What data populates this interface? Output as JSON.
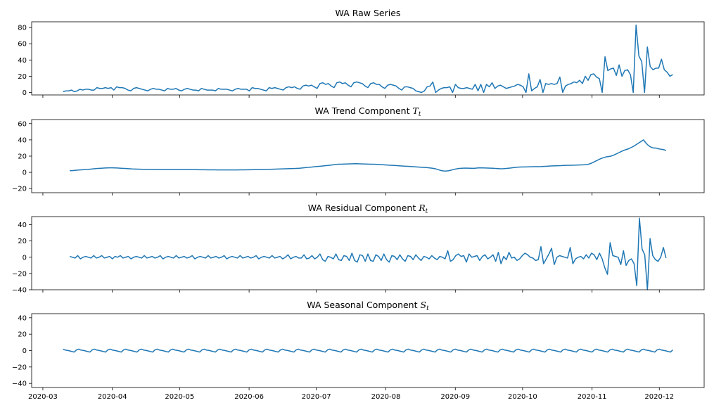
{
  "colors": {
    "line": "#1f77b4",
    "axis": "#000000",
    "background": "#ffffff"
  },
  "x_tick_labels": [
    "2020-03",
    "2020-04",
    "2020-05",
    "2020-06",
    "2020-07",
    "2020-08",
    "2020-09",
    "2020-10",
    "2020-11",
    "2020-12"
  ],
  "chart_data": [
    {
      "type": "line",
      "title": "WA Raw Series",
      "ylim": [
        -3,
        87
      ],
      "yticks": [
        0,
        20,
        40,
        60,
        80
      ],
      "series": [
        {
          "x_start": "2020-03-10",
          "x_end": "2020-12-07",
          "values": [
            1,
            2,
            2,
            3,
            1,
            2,
            4,
            3,
            4,
            4,
            3,
            3,
            6,
            5,
            5,
            6,
            5,
            6,
            3,
            7,
            6,
            6,
            5,
            3,
            2,
            5,
            6,
            5,
            4,
            3,
            2,
            4,
            5,
            4,
            4,
            3,
            2,
            5,
            4,
            4,
            5,
            3,
            2,
            4,
            5,
            4,
            3,
            3,
            2,
            5,
            4,
            3,
            3,
            3,
            2,
            5,
            4,
            4,
            4,
            3,
            2,
            4,
            5,
            4,
            4,
            4,
            2,
            6,
            5,
            5,
            4,
            3,
            2,
            6,
            5,
            6,
            5,
            4,
            3,
            6,
            7,
            6,
            7,
            5,
            4,
            8,
            9,
            8,
            9,
            7,
            5,
            11,
            12,
            10,
            11,
            8,
            6,
            12,
            13,
            11,
            12,
            9,
            7,
            12,
            13,
            12,
            11,
            8,
            6,
            11,
            12,
            10,
            10,
            7,
            5,
            9,
            10,
            9,
            8,
            5,
            3,
            7,
            7,
            6,
            5,
            2,
            1,
            0,
            2,
            7,
            8,
            13,
            0,
            3,
            5,
            6,
            6,
            7,
            0,
            10,
            6,
            5,
            5,
            6,
            5,
            4,
            10,
            2,
            10,
            0,
            10,
            7,
            12,
            5,
            8,
            9,
            7,
            5,
            6,
            7,
            8,
            10,
            9,
            7,
            0,
            23,
            2,
            5,
            7,
            16,
            0,
            11,
            10,
            11,
            10,
            11,
            19,
            0,
            8,
            10,
            11,
            13,
            12,
            15,
            11,
            20,
            15,
            22,
            23,
            19,
            17,
            0,
            44,
            27,
            29,
            30,
            21,
            34,
            20,
            27,
            28,
            22,
            0,
            83,
            45,
            38,
            0,
            56,
            32,
            28,
            30,
            30,
            41,
            28,
            25,
            20,
            22
          ]
        }
      ]
    },
    {
      "type": "line",
      "title": "WA Trend Component",
      "title_symbol": "T",
      "title_subscript": "t",
      "ylim": [
        -25,
        65
      ],
      "yticks": [
        -20,
        0,
        20,
        40,
        60
      ],
      "series": [
        {
          "x_start": "2020-03-13",
          "x_end": "2020-12-04",
          "values": [
            2,
            2.2,
            2.5,
            2.8,
            3,
            3.2,
            3.4,
            3.6,
            3.9,
            4.2,
            4.5,
            4.8,
            5,
            5.2,
            5.4,
            5.5,
            5.6,
            5.6,
            5.5,
            5.4,
            5.2,
            5,
            4.8,
            4.6,
            4.4,
            4.2,
            4.1,
            4,
            3.9,
            3.8,
            3.8,
            3.7,
            3.7,
            3.7,
            3.6,
            3.6,
            3.5,
            3.5,
            3.4,
            3.4,
            3.4,
            3.4,
            3.5,
            3.5,
            3.5,
            3.5,
            3.5,
            3.4,
            3.4,
            3.4,
            3.3,
            3.3,
            3.2,
            3.2,
            3.2,
            3.1,
            3.1,
            3.1,
            3.1,
            3,
            3,
            3,
            3,
            3,
            3,
            3,
            3,
            3,
            3.1,
            3.1,
            3.1,
            3.2,
            3.2,
            3.3,
            3.3,
            3.4,
            3.4,
            3.5,
            3.6,
            3.7,
            3.8,
            3.9,
            4,
            4.1,
            4.2,
            4.3,
            4.4,
            4.5,
            4.6,
            4.7,
            4.8,
            5,
            5.2,
            5.5,
            5.8,
            6.1,
            6.4,
            6.7,
            7,
            7.3,
            7.6,
            7.9,
            8.2,
            8.5,
            8.9,
            9.3,
            9.7,
            10,
            10.1,
            10.2,
            10.3,
            10.4,
            10.5,
            10.6,
            10.7,
            10.6,
            10.5,
            10.4,
            10.3,
            10.2,
            10.1,
            10,
            9.9,
            9.8,
            9.6,
            9.4,
            9.2,
            9,
            8.8,
            8.6,
            8.4,
            8.2,
            8,
            7.8,
            7.6,
            7.4,
            7.2,
            7,
            6.8,
            6.6,
            6.4,
            6.2,
            6,
            5.7,
            5.4,
            5,
            4.4,
            3.4,
            2.4,
            1.8,
            1.6,
            1.9,
            2.6,
            3.4,
            4.1,
            4.7,
            5,
            5.2,
            5.3,
            5.2,
            5.1,
            5,
            5.2,
            5.5,
            5.6,
            5.5,
            5.4,
            5.3,
            5.2,
            5.1,
            4.8,
            4.6,
            4.4,
            4.5,
            4.8,
            5.1,
            5.4,
            5.8,
            6.2,
            6.5,
            6.6,
            6.7,
            6.7,
            6.8,
            6.9,
            7,
            7,
            7,
            7.1,
            7.3,
            7.5,
            7.7,
            7.9,
            8,
            8.1,
            8.2,
            8.3,
            8.5,
            8.6,
            8.7,
            8.8,
            8.9,
            9,
            9.1,
            9.2,
            9.3,
            9.5,
            10,
            11,
            12.5,
            14,
            15.5,
            17,
            18,
            19,
            19.5,
            20,
            21,
            22.5,
            24,
            25.5,
            27,
            28,
            29,
            30.5,
            32,
            34,
            36,
            38,
            40,
            36,
            33,
            31,
            30,
            30,
            29,
            28.5,
            28,
            27
          ]
        }
      ]
    },
    {
      "type": "line",
      "title": "WA Residual Component",
      "title_symbol": "R",
      "title_subscript": "t",
      "ylim": [
        -40,
        50
      ],
      "yticks": [
        -40,
        -20,
        0,
        20,
        40
      ],
      "series": [
        {
          "x_start": "2020-03-13",
          "x_end": "2020-12-04",
          "values": [
            1,
            0,
            -1,
            2,
            -2,
            0,
            1,
            0,
            -1,
            2,
            -1,
            0,
            2,
            -1,
            0,
            1,
            -2,
            1,
            0,
            2,
            -1,
            0,
            1,
            -2,
            0,
            1,
            0,
            -1,
            2,
            -1,
            0,
            1,
            -1,
            0,
            2,
            -2,
            0,
            1,
            0,
            -1,
            2,
            -1,
            0,
            1,
            -1,
            0,
            2,
            -2,
            0,
            1,
            0,
            -1,
            2,
            -1,
            0,
            1,
            -1,
            0,
            2,
            -2,
            0,
            1,
            0,
            -1,
            2,
            -1,
            0,
            1,
            -1,
            0,
            2,
            -2,
            0,
            1,
            0,
            -1,
            2,
            -1,
            0,
            1,
            -2,
            0,
            3,
            -2,
            0,
            1,
            -1,
            -1,
            3,
            -2,
            -1,
            2,
            -2,
            0,
            4,
            -3,
            -5,
            1,
            0,
            -2,
            4,
            -3,
            -4,
            2,
            1,
            -4,
            5,
            -4,
            -6,
            3,
            2,
            -5,
            4,
            -4,
            -5,
            3,
            1,
            -4,
            4,
            -3,
            -6,
            2,
            1,
            -3,
            3,
            -2,
            -5,
            2,
            1,
            -3,
            3,
            -1,
            -4,
            1,
            0,
            -2,
            2,
            -1,
            -3,
            1,
            0,
            -2,
            8,
            -5,
            -3,
            2,
            4,
            1,
            2,
            -6,
            4,
            0,
            1,
            2,
            -4,
            1,
            3,
            -2,
            0,
            3,
            -5,
            6,
            -8,
            1,
            -3,
            6,
            -1,
            0,
            -4,
            -2,
            2,
            5,
            3,
            0,
            -1,
            -4,
            -3,
            13,
            -8,
            -2,
            4,
            11,
            -9,
            0,
            2,
            1,
            0,
            -1,
            12,
            -8,
            -2,
            0,
            1,
            -2,
            3,
            -1,
            5,
            3,
            -3,
            5,
            -2,
            -13,
            -21,
            18,
            2,
            1,
            0,
            -9,
            8,
            -10,
            -4,
            -2,
            -8,
            -35,
            48,
            10,
            3,
            -40,
            23,
            2,
            -3,
            -5,
            0,
            12,
            -1
          ]
        }
      ]
    },
    {
      "type": "line",
      "title": "WA Seasonal Component",
      "title_symbol": "S",
      "title_subscript": "t",
      "ylim": [
        -45,
        45
      ],
      "yticks": [
        -40,
        -20,
        0,
        20,
        40
      ],
      "series": [
        {
          "x_start": "2020-03-10",
          "x_end": "2020-12-07",
          "pattern": [
            1.8,
            0.6,
            0.2,
            -0.4,
            -1.2,
            -1.8,
            0.8
          ]
        }
      ]
    }
  ]
}
